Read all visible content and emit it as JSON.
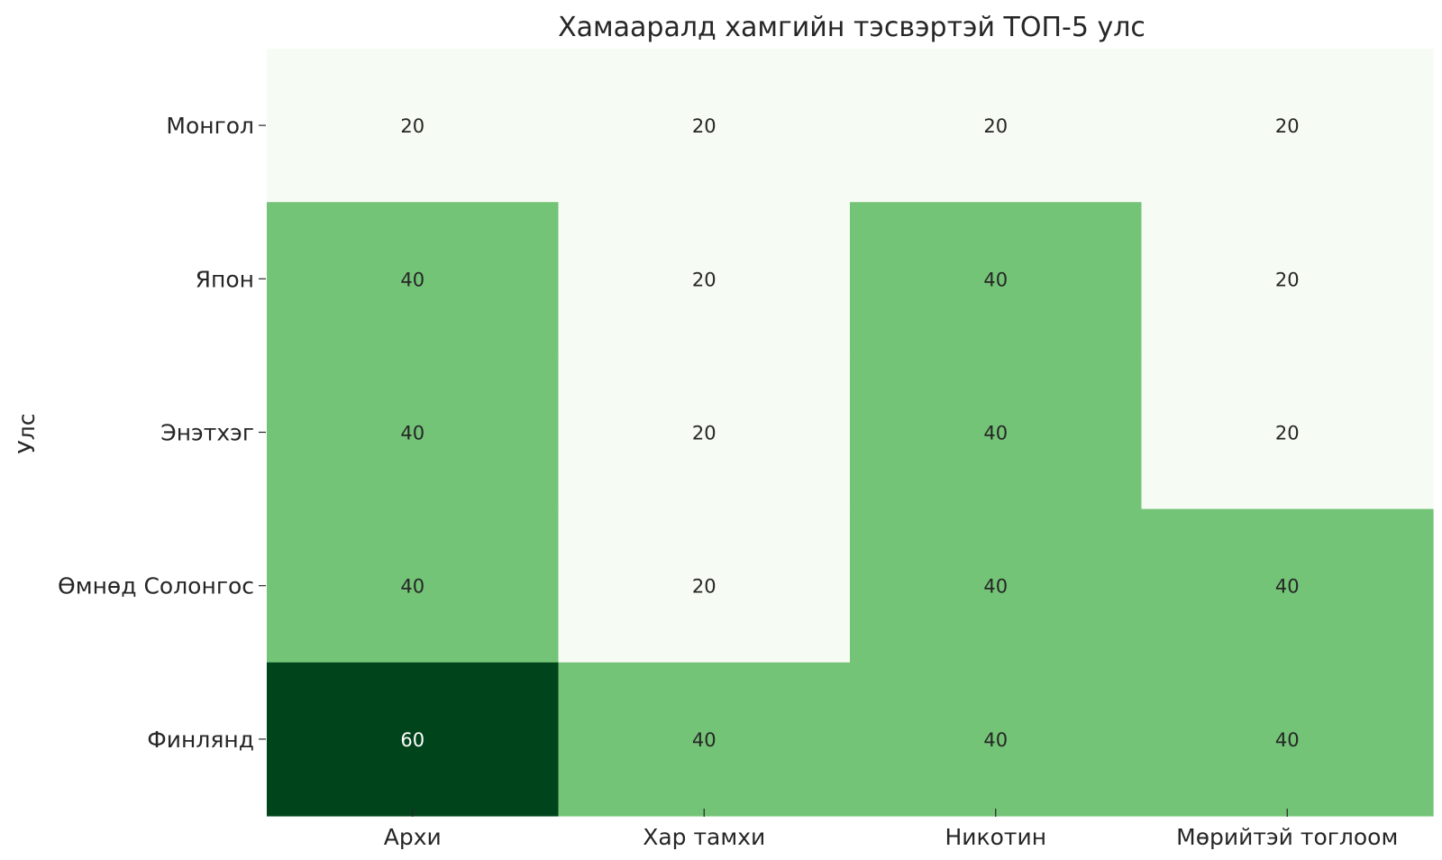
{
  "chart_data": {
    "type": "heatmap",
    "title": "Хамааралд хамгийн тэсвэртэй ТОП-5 улс",
    "xlabel": "",
    "ylabel": "Улс",
    "columns": [
      "Архи",
      "Хар тамхи",
      "Никотин",
      "Мөрийтэй тоглоом"
    ],
    "rows": [
      "Монгол",
      "Япон",
      "Энэтхэг",
      "Өмнөд Солонгос",
      "Финлянд"
    ],
    "values": [
      [
        20,
        20,
        20,
        20
      ],
      [
        40,
        20,
        40,
        20
      ],
      [
        40,
        20,
        40,
        20
      ],
      [
        40,
        20,
        40,
        40
      ],
      [
        60,
        40,
        40,
        40
      ]
    ],
    "colormap": "Greens",
    "value_colors": {
      "20": "#f6fbf3",
      "40": "#73c476",
      "60": "#00441b"
    },
    "annotation_colors": {
      "dark_cell_text": "#ffffff",
      "light_cell_text": "#262626"
    },
    "grid": false,
    "legend": "none"
  }
}
